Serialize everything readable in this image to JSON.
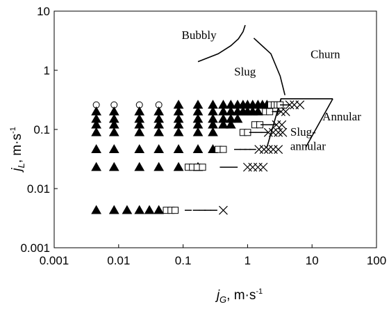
{
  "chart_data": {
    "type": "scatter",
    "title": "",
    "xscale": "log",
    "yscale": "log",
    "xlim": [
      0.001,
      100
    ],
    "ylim": [
      0.001,
      10
    ],
    "x_ticks": [
      {
        "value": 0.001,
        "label": "0.001"
      },
      {
        "value": 0.01,
        "label": "0.01"
      },
      {
        "value": 0.1,
        "label": "0.1"
      },
      {
        "value": 1,
        "label": "1"
      },
      {
        "value": 10,
        "label": "10"
      },
      {
        "value": 100,
        "label": "100"
      }
    ],
    "y_ticks": [
      {
        "value": 0.001,
        "label": "0.001"
      },
      {
        "value": 0.01,
        "label": "0.01"
      },
      {
        "value": 0.1,
        "label": "0.1"
      },
      {
        "value": 1,
        "label": "1"
      },
      {
        "value": 10,
        "label": "10"
      }
    ],
    "xlabel": {
      "main": "j",
      "sub": "G",
      "unit": ", m·s",
      "sup": "-1"
    },
    "ylabel": {
      "main": "j",
      "sub": "L",
      "unit": ", m·s",
      "sup": "-1"
    },
    "grid": false,
    "legend": "none",
    "marker_colors": {
      "filled": "#000000",
      "open": "#ffffff"
    },
    "region_labels": [
      {
        "text": "Bubbly",
        "x": 0.095,
        "y": 3.4
      },
      {
        "text": "Slug",
        "x": 0.62,
        "y": 0.82
      },
      {
        "text": "Churn",
        "x": 9.5,
        "y": 1.6
      },
      {
        "text": "Annular",
        "x": 14.5,
        "y": 0.143
      },
      {
        "text": "Slug-",
        "x": 4.6,
        "y": 0.078
      },
      {
        "text": "annular",
        "x": 4.6,
        "y": 0.045
      }
    ],
    "boundaries": [
      {
        "name": "bubbly-slug",
        "x": [
          0.17,
          0.35,
          0.55,
          0.72,
          0.85,
          0.92
        ],
        "y": [
          1.4,
          1.9,
          2.6,
          3.4,
          4.5,
          5.8
        ]
      },
      {
        "name": "slug-churn",
        "x": [
          1.25,
          2.3,
          3.2,
          3.8
        ],
        "y": [
          3.5,
          1.9,
          0.8,
          0.38
        ]
      },
      {
        "name": "churn-annular",
        "x": [
          2.9,
          3.3,
          12,
          21
        ],
        "y": [
          0.18,
          0.33,
          0.33,
          0.33
        ]
      },
      {
        "name": "annular-lower",
        "x": [
          21,
          8
        ],
        "y": [
          0.33,
          0.05
        ]
      },
      {
        "name": "slug-annular-left",
        "x": [
          3.3,
          2.0
        ],
        "y": [
          0.33,
          0.05
        ]
      }
    ],
    "series": [
      {
        "marker": "circle",
        "points": [
          [
            0.0045,
            0.26
          ],
          [
            0.0085,
            0.26
          ],
          [
            0.021,
            0.26
          ],
          [
            0.042,
            0.26
          ]
        ]
      },
      {
        "marker": "triangle",
        "points": [
          [
            0.0045,
            0.2
          ],
          [
            0.0045,
            0.15
          ],
          [
            0.0045,
            0.12
          ],
          [
            0.0045,
            0.089
          ],
          [
            0.0045,
            0.046
          ],
          [
            0.0045,
            0.023
          ],
          [
            0.0045,
            0.0043
          ],
          [
            0.0085,
            0.2
          ],
          [
            0.0085,
            0.15
          ],
          [
            0.0085,
            0.12
          ],
          [
            0.0085,
            0.089
          ],
          [
            0.0085,
            0.046
          ],
          [
            0.0085,
            0.023
          ],
          [
            0.0085,
            0.0043
          ],
          [
            0.021,
            0.2
          ],
          [
            0.021,
            0.15
          ],
          [
            0.021,
            0.12
          ],
          [
            0.021,
            0.089
          ],
          [
            0.021,
            0.046
          ],
          [
            0.021,
            0.023
          ],
          [
            0.0135,
            0.0043
          ],
          [
            0.042,
            0.2
          ],
          [
            0.042,
            0.15
          ],
          [
            0.042,
            0.12
          ],
          [
            0.042,
            0.089
          ],
          [
            0.042,
            0.046
          ],
          [
            0.042,
            0.023
          ],
          [
            0.021,
            0.0043
          ],
          [
            0.085,
            0.26
          ],
          [
            0.085,
            0.2
          ],
          [
            0.085,
            0.15
          ],
          [
            0.085,
            0.12
          ],
          [
            0.085,
            0.089
          ],
          [
            0.085,
            0.046
          ],
          [
            0.085,
            0.023
          ],
          [
            0.03,
            0.0043
          ],
          [
            0.042,
            0.0043
          ],
          [
            0.17,
            0.26
          ],
          [
            0.17,
            0.2
          ],
          [
            0.17,
            0.15
          ],
          [
            0.17,
            0.12
          ],
          [
            0.17,
            0.089
          ],
          [
            0.17,
            0.046
          ],
          [
            0.17,
            0.023
          ],
          [
            0.29,
            0.26
          ],
          [
            0.29,
            0.2
          ],
          [
            0.29,
            0.15
          ],
          [
            0.29,
            0.12
          ],
          [
            0.29,
            0.089
          ],
          [
            0.29,
            0.046
          ],
          [
            0.42,
            0.26
          ],
          [
            0.42,
            0.2
          ],
          [
            0.42,
            0.15
          ],
          [
            0.42,
            0.12
          ],
          [
            0.55,
            0.26
          ],
          [
            0.55,
            0.2
          ],
          [
            0.55,
            0.15
          ],
          [
            0.55,
            0.12
          ],
          [
            0.7,
            0.26
          ],
          [
            0.7,
            0.2
          ],
          [
            0.7,
            0.15
          ],
          [
            0.85,
            0.26
          ],
          [
            0.85,
            0.2
          ],
          [
            1.0,
            0.26
          ],
          [
            1.0,
            0.2
          ],
          [
            1.2,
            0.26
          ],
          [
            1.2,
            0.2
          ],
          [
            1.45,
            0.26
          ],
          [
            1.45,
            0.2
          ],
          [
            1.7,
            0.26
          ],
          [
            2.0,
            0.26
          ]
        ]
      },
      {
        "marker": "square",
        "points": [
          [
            0.055,
            0.0043
          ],
          [
            0.065,
            0.0043
          ],
          [
            0.075,
            0.0043
          ],
          [
            0.12,
            0.023
          ],
          [
            0.14,
            0.023
          ],
          [
            0.165,
            0.023
          ],
          [
            0.2,
            0.023
          ],
          [
            0.35,
            0.046
          ],
          [
            0.42,
            0.046
          ],
          [
            0.85,
            0.089
          ],
          [
            1.0,
            0.089
          ],
          [
            1.3,
            0.12
          ],
          [
            1.55,
            0.12
          ],
          [
            1.9,
            0.2
          ],
          [
            2.2,
            0.2
          ],
          [
            2.3,
            0.26
          ],
          [
            2.6,
            0.26
          ],
          [
            2.9,
            0.26
          ],
          [
            3.2,
            0.26
          ]
        ]
      },
      {
        "marker": "cross",
        "points": [
          [
            0.42,
            0.0043
          ],
          [
            1.0,
            0.023
          ],
          [
            1.2,
            0.023
          ],
          [
            1.45,
            0.023
          ],
          [
            1.75,
            0.023
          ],
          [
            1.5,
            0.046
          ],
          [
            1.8,
            0.046
          ],
          [
            2.1,
            0.046
          ],
          [
            2.5,
            0.046
          ],
          [
            3.0,
            0.046
          ],
          [
            2.1,
            0.089
          ],
          [
            2.5,
            0.089
          ],
          [
            3.0,
            0.089
          ],
          [
            3.5,
            0.089
          ],
          [
            2.8,
            0.12
          ],
          [
            3.4,
            0.12
          ],
          [
            3.3,
            0.2
          ],
          [
            3.9,
            0.2
          ],
          [
            4.5,
            0.26
          ],
          [
            5.3,
            0.26
          ],
          [
            6.5,
            0.26
          ]
        ]
      },
      {
        "marker": "dash",
        "points": [
          [
            0.12,
            0.0043
          ],
          [
            0.16,
            0.0043
          ],
          [
            0.2,
            0.0043
          ],
          [
            0.24,
            0.0043
          ],
          [
            0.3,
            0.0043
          ],
          [
            0.42,
            0.023
          ],
          [
            0.52,
            0.023
          ],
          [
            0.62,
            0.023
          ],
          [
            0.7,
            0.046
          ],
          [
            0.85,
            0.046
          ],
          [
            1.0,
            0.046
          ],
          [
            1.2,
            0.046
          ],
          [
            1.2,
            0.089
          ],
          [
            1.5,
            0.089
          ],
          [
            1.8,
            0.089
          ],
          [
            1.8,
            0.12
          ],
          [
            2.1,
            0.12
          ],
          [
            2.4,
            0.12
          ],
          [
            2.7,
            0.2
          ],
          [
            3.0,
            0.2
          ],
          [
            3.6,
            0.26
          ],
          [
            4.0,
            0.26
          ]
        ]
      }
    ]
  }
}
